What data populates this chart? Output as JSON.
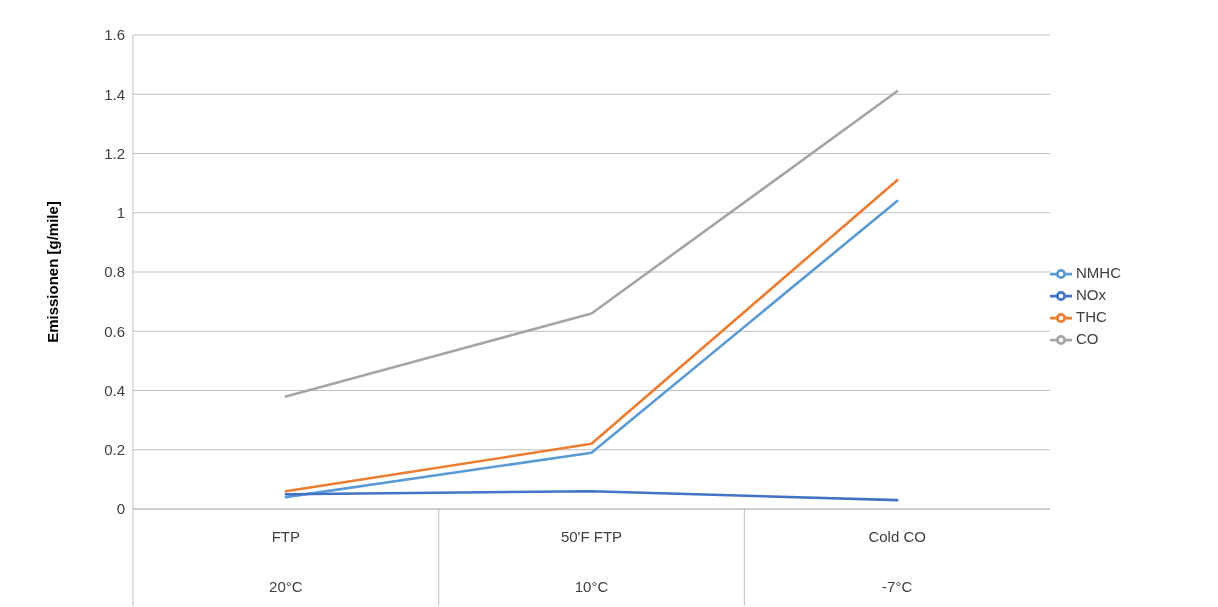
{
  "chart_data": {
    "type": "line",
    "ylabel": "Emissionen [g/mile]",
    "categories": [
      "FTP\n20°C",
      "50'F FTP\n10°C",
      "Cold CO\n-7°C"
    ],
    "series": [
      {
        "name": "NMHC",
        "color": "#5b9bd5",
        "values": [
          0.04,
          0.19,
          1.04
        ]
      },
      {
        "name": "NOx",
        "color": "#4472c4",
        "values": [
          0.05,
          0.06,
          0.03
        ]
      },
      {
        "name": "THC",
        "color": "#ed7d31",
        "values": [
          0.06,
          0.22,
          1.11
        ]
      },
      {
        "name": "CO",
        "color": "#a5a5a5",
        "values": [
          0.38,
          0.66,
          1.41
        ]
      }
    ],
    "ylim": [
      0,
      1.6
    ],
    "yticks": [
      0,
      0.2,
      0.4,
      0.6,
      0.8,
      1,
      1.2,
      1.4,
      1.6
    ],
    "grid": "y",
    "legend": "right",
    "marker": "none",
    "line_style": "solid"
  }
}
